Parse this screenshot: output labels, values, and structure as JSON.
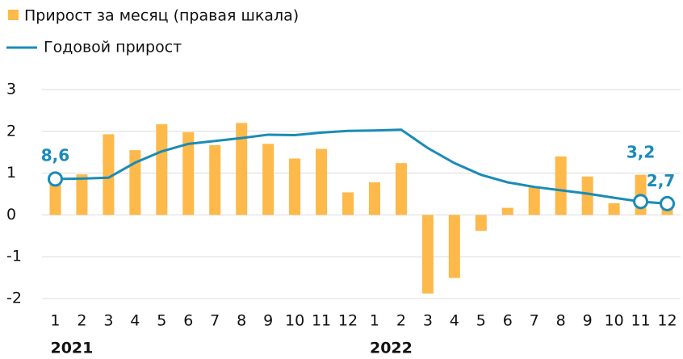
{
  "chart_data": {
    "type": "bar-line",
    "legend": [
      "Прирост за месяц (правая шкала)",
      "Годовой прирост"
    ],
    "categories": [
      "1",
      "2",
      "3",
      "4",
      "5",
      "6",
      "7",
      "8",
      "9",
      "10",
      "11",
      "12",
      "1",
      "2",
      "3",
      "4",
      "5",
      "6",
      "7",
      "8",
      "9",
      "10",
      "11",
      "12"
    ],
    "year_labels": [
      "2021",
      "2022"
    ],
    "series": [
      {
        "name": "Прирост за месяц (правая шкала)",
        "type": "bar",
        "color": "#fdb94a",
        "values": [
          0.87,
          0.97,
          1.93,
          1.55,
          2.17,
          1.98,
          1.67,
          2.2,
          1.7,
          1.35,
          1.58,
          0.54,
          0.78,
          1.24,
          -1.88,
          -1.51,
          -0.38,
          0.17,
          0.68,
          1.4,
          0.92,
          0.28,
          0.96,
          0.26
        ]
      },
      {
        "name": "Годовой прирост",
        "type": "line",
        "color": "#1a8bb8",
        "axis": "y2",
        "values": [
          8.6,
          8.7,
          8.9,
          12.5,
          15.2,
          17,
          17.7,
          18.4,
          19.2,
          19.1,
          19.7,
          20.1,
          20.2,
          20.4,
          16,
          12.4,
          9.6,
          7.8,
          6.7,
          5.9,
          5.1,
          4.1,
          3.2,
          2.7
        ],
        "value_labels": [
          "8,6",
          null,
          null,
          null,
          null,
          null,
          null,
          null,
          null,
          null,
          null,
          null,
          null,
          null,
          null,
          null,
          null,
          null,
          null,
          null,
          null,
          null,
          "3,2",
          "2,7"
        ]
      }
    ],
    "ylim": [
      -2,
      3
    ],
    "yticks": [
      -2,
      -1,
      0,
      1,
      2,
      3
    ],
    "y2lim": [
      -20,
      30
    ],
    "grid": true
  }
}
